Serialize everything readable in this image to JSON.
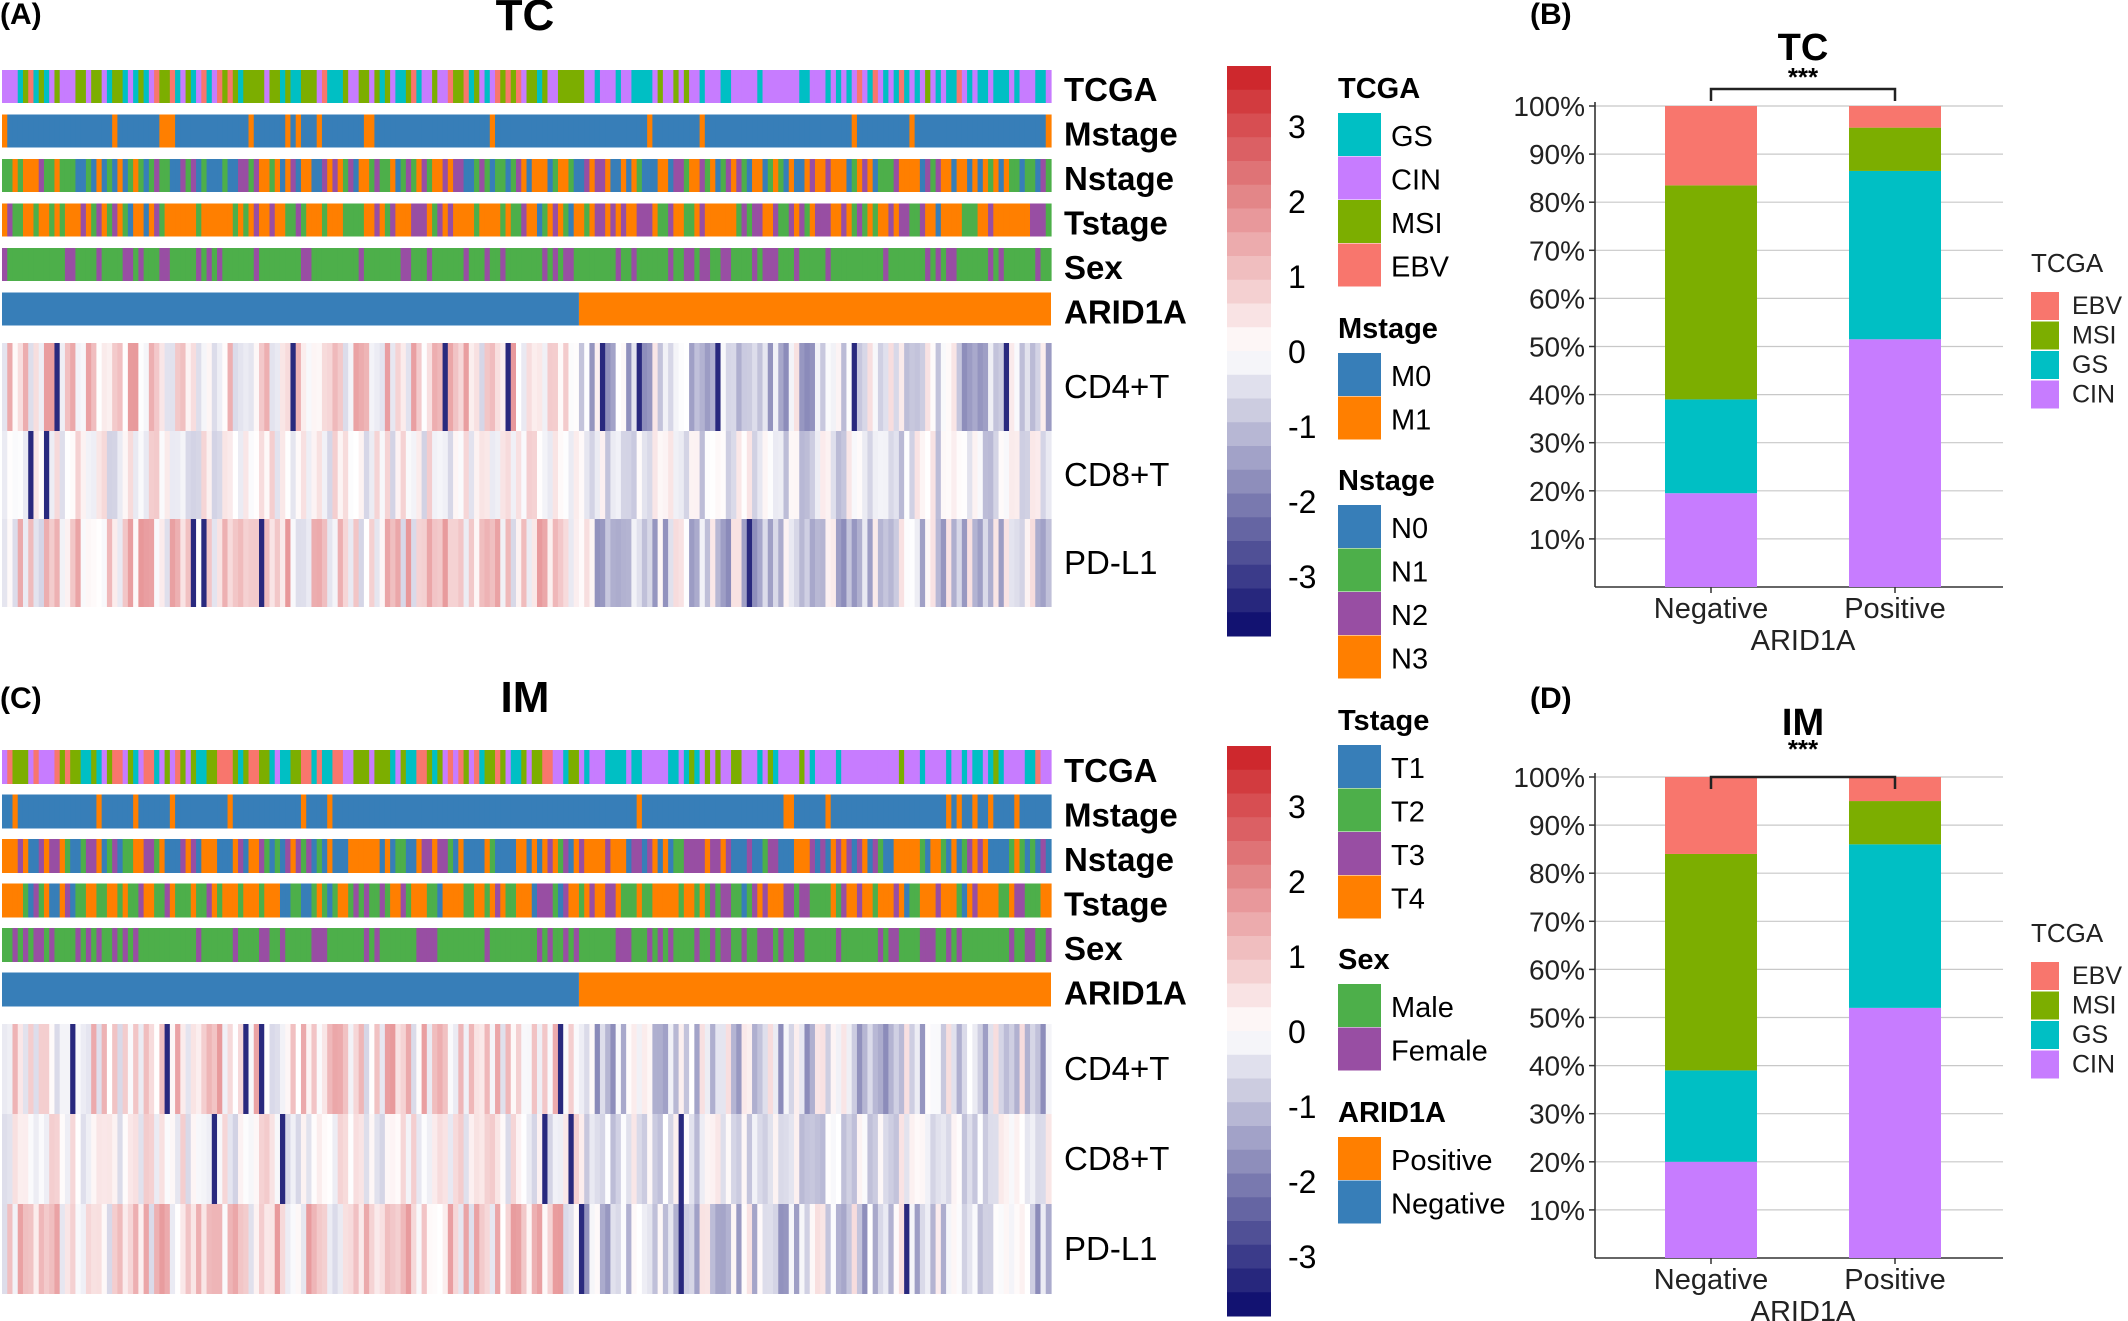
{
  "figure": {
    "panels": [
      {
        "letter": "(A)",
        "title": "TC",
        "seed": 11
      },
      {
        "letter": "(C)",
        "title": "IM",
        "seed": 29
      }
    ],
    "annotation_rows": [
      "TCGA",
      "Mstage",
      "Nstage",
      "Tstage",
      "Sex",
      "ARID1A"
    ],
    "expression_rows": [
      "CD4+T",
      "CD8+T",
      "PD-L1"
    ],
    "n_samples": 200,
    "arid1a_negative_count": 110,
    "colorbar_ticks": [
      "3",
      "2",
      "1",
      "0",
      "-1",
      "-2",
      "-3"
    ],
    "colorbar_range": [
      -3.8,
      3.8
    ],
    "legends": [
      {
        "title": "TCGA",
        "items": [
          {
            "label": "GS",
            "color": "#00BFC4"
          },
          {
            "label": "CIN",
            "color": "#C77CFF"
          },
          {
            "label": "MSI",
            "color": "#7CAE00"
          },
          {
            "label": "EBV",
            "color": "#F8766D"
          }
        ]
      },
      {
        "title": "Mstage",
        "items": [
          {
            "label": "M0",
            "color": "#377EB8"
          },
          {
            "label": "M1",
            "color": "#FF7F00"
          }
        ]
      },
      {
        "title": "Nstage",
        "items": [
          {
            "label": "N0",
            "color": "#377EB8"
          },
          {
            "label": "N1",
            "color": "#4DAF4A"
          },
          {
            "label": "N2",
            "color": "#984EA3"
          },
          {
            "label": "N3",
            "color": "#FF7F00"
          }
        ]
      },
      {
        "title": "Tstage",
        "items": [
          {
            "label": "T1",
            "color": "#377EB8"
          },
          {
            "label": "T2",
            "color": "#4DAF4A"
          },
          {
            "label": "T3",
            "color": "#984EA3"
          },
          {
            "label": "T4",
            "color": "#FF7F00"
          }
        ]
      },
      {
        "title": "Sex",
        "items": [
          {
            "label": "Male",
            "color": "#4DAF4A"
          },
          {
            "label": "Female",
            "color": "#984EA3"
          }
        ]
      },
      {
        "title": "ARID1A",
        "items": [
          {
            "label": "Positive",
            "color": "#FF7F00"
          },
          {
            "label": "Negative",
            "color": "#377EB8"
          }
        ]
      }
    ]
  },
  "chart_data": [
    {
      "type": "heatmap",
      "panel": "(A)",
      "title": "TC",
      "annotation_rows": [
        "TCGA",
        "Mstage",
        "Nstage",
        "Tstage",
        "Sex",
        "ARID1A"
      ],
      "rows": [
        "CD4+T",
        "CD8+T",
        "PD-L1"
      ],
      "color_scale": {
        "min": -3.8,
        "max": 3.8,
        "low": "#08086B",
        "mid": "#FFFFFF",
        "high": "#CC1F24",
        "ticks": [
          3,
          2,
          1,
          0,
          -1,
          -2,
          -3
        ]
      },
      "column_split": {
        "ARID1A Negative": 110,
        "ARID1A Positive": 90
      }
    },
    {
      "type": "bar",
      "stacked": true,
      "panel": "(B)",
      "title": "TC",
      "significance": "***",
      "xlabel": "ARID1A",
      "ylabel": "",
      "categories": [
        "Negative",
        "Positive"
      ],
      "y_ticks": [
        "10%",
        "20%",
        "30%",
        "40%",
        "50%",
        "60%",
        "70%",
        "80%",
        "90%",
        "100%"
      ],
      "ylim": [
        0,
        100
      ],
      "legend_title": "TCGA",
      "legend_position": "right",
      "series": [
        {
          "name": "CIN",
          "color": "#C77CFF",
          "values": [
            19.5,
            51.5
          ]
        },
        {
          "name": "GS",
          "color": "#00BFC4",
          "values": [
            19.5,
            35
          ]
        },
        {
          "name": "MSI",
          "color": "#7CAE00",
          "values": [
            44.5,
            9
          ]
        },
        {
          "name": "EBV",
          "color": "#F8766D",
          "values": [
            16.5,
            4.5
          ]
        }
      ]
    },
    {
      "type": "heatmap",
      "panel": "(C)",
      "title": "IM",
      "annotation_rows": [
        "TCGA",
        "Mstage",
        "Nstage",
        "Tstage",
        "Sex",
        "ARID1A"
      ],
      "rows": [
        "CD4+T",
        "CD8+T",
        "PD-L1"
      ],
      "color_scale": {
        "min": -3.8,
        "max": 3.8,
        "low": "#08086B",
        "mid": "#FFFFFF",
        "high": "#CC1F24",
        "ticks": [
          3,
          2,
          1,
          0,
          -1,
          -2,
          -3
        ]
      },
      "column_split": {
        "ARID1A Negative": 110,
        "ARID1A Positive": 90
      }
    },
    {
      "type": "bar",
      "stacked": true,
      "panel": "(D)",
      "title": "IM",
      "significance": "***",
      "xlabel": "ARID1A",
      "ylabel": "",
      "categories": [
        "Negative",
        "Positive"
      ],
      "y_ticks": [
        "10%",
        "20%",
        "30%",
        "40%",
        "50%",
        "60%",
        "70%",
        "80%",
        "90%",
        "100%"
      ],
      "ylim": [
        0,
        100
      ],
      "legend_title": "TCGA",
      "legend_position": "right",
      "series": [
        {
          "name": "CIN",
          "color": "#C77CFF",
          "values": [
            20,
            52
          ]
        },
        {
          "name": "GS",
          "color": "#00BFC4",
          "values": [
            19,
            34
          ]
        },
        {
          "name": "MSI",
          "color": "#7CAE00",
          "values": [
            45,
            9
          ]
        },
        {
          "name": "EBV",
          "color": "#F8766D",
          "values": [
            16,
            5
          ]
        }
      ]
    }
  ]
}
